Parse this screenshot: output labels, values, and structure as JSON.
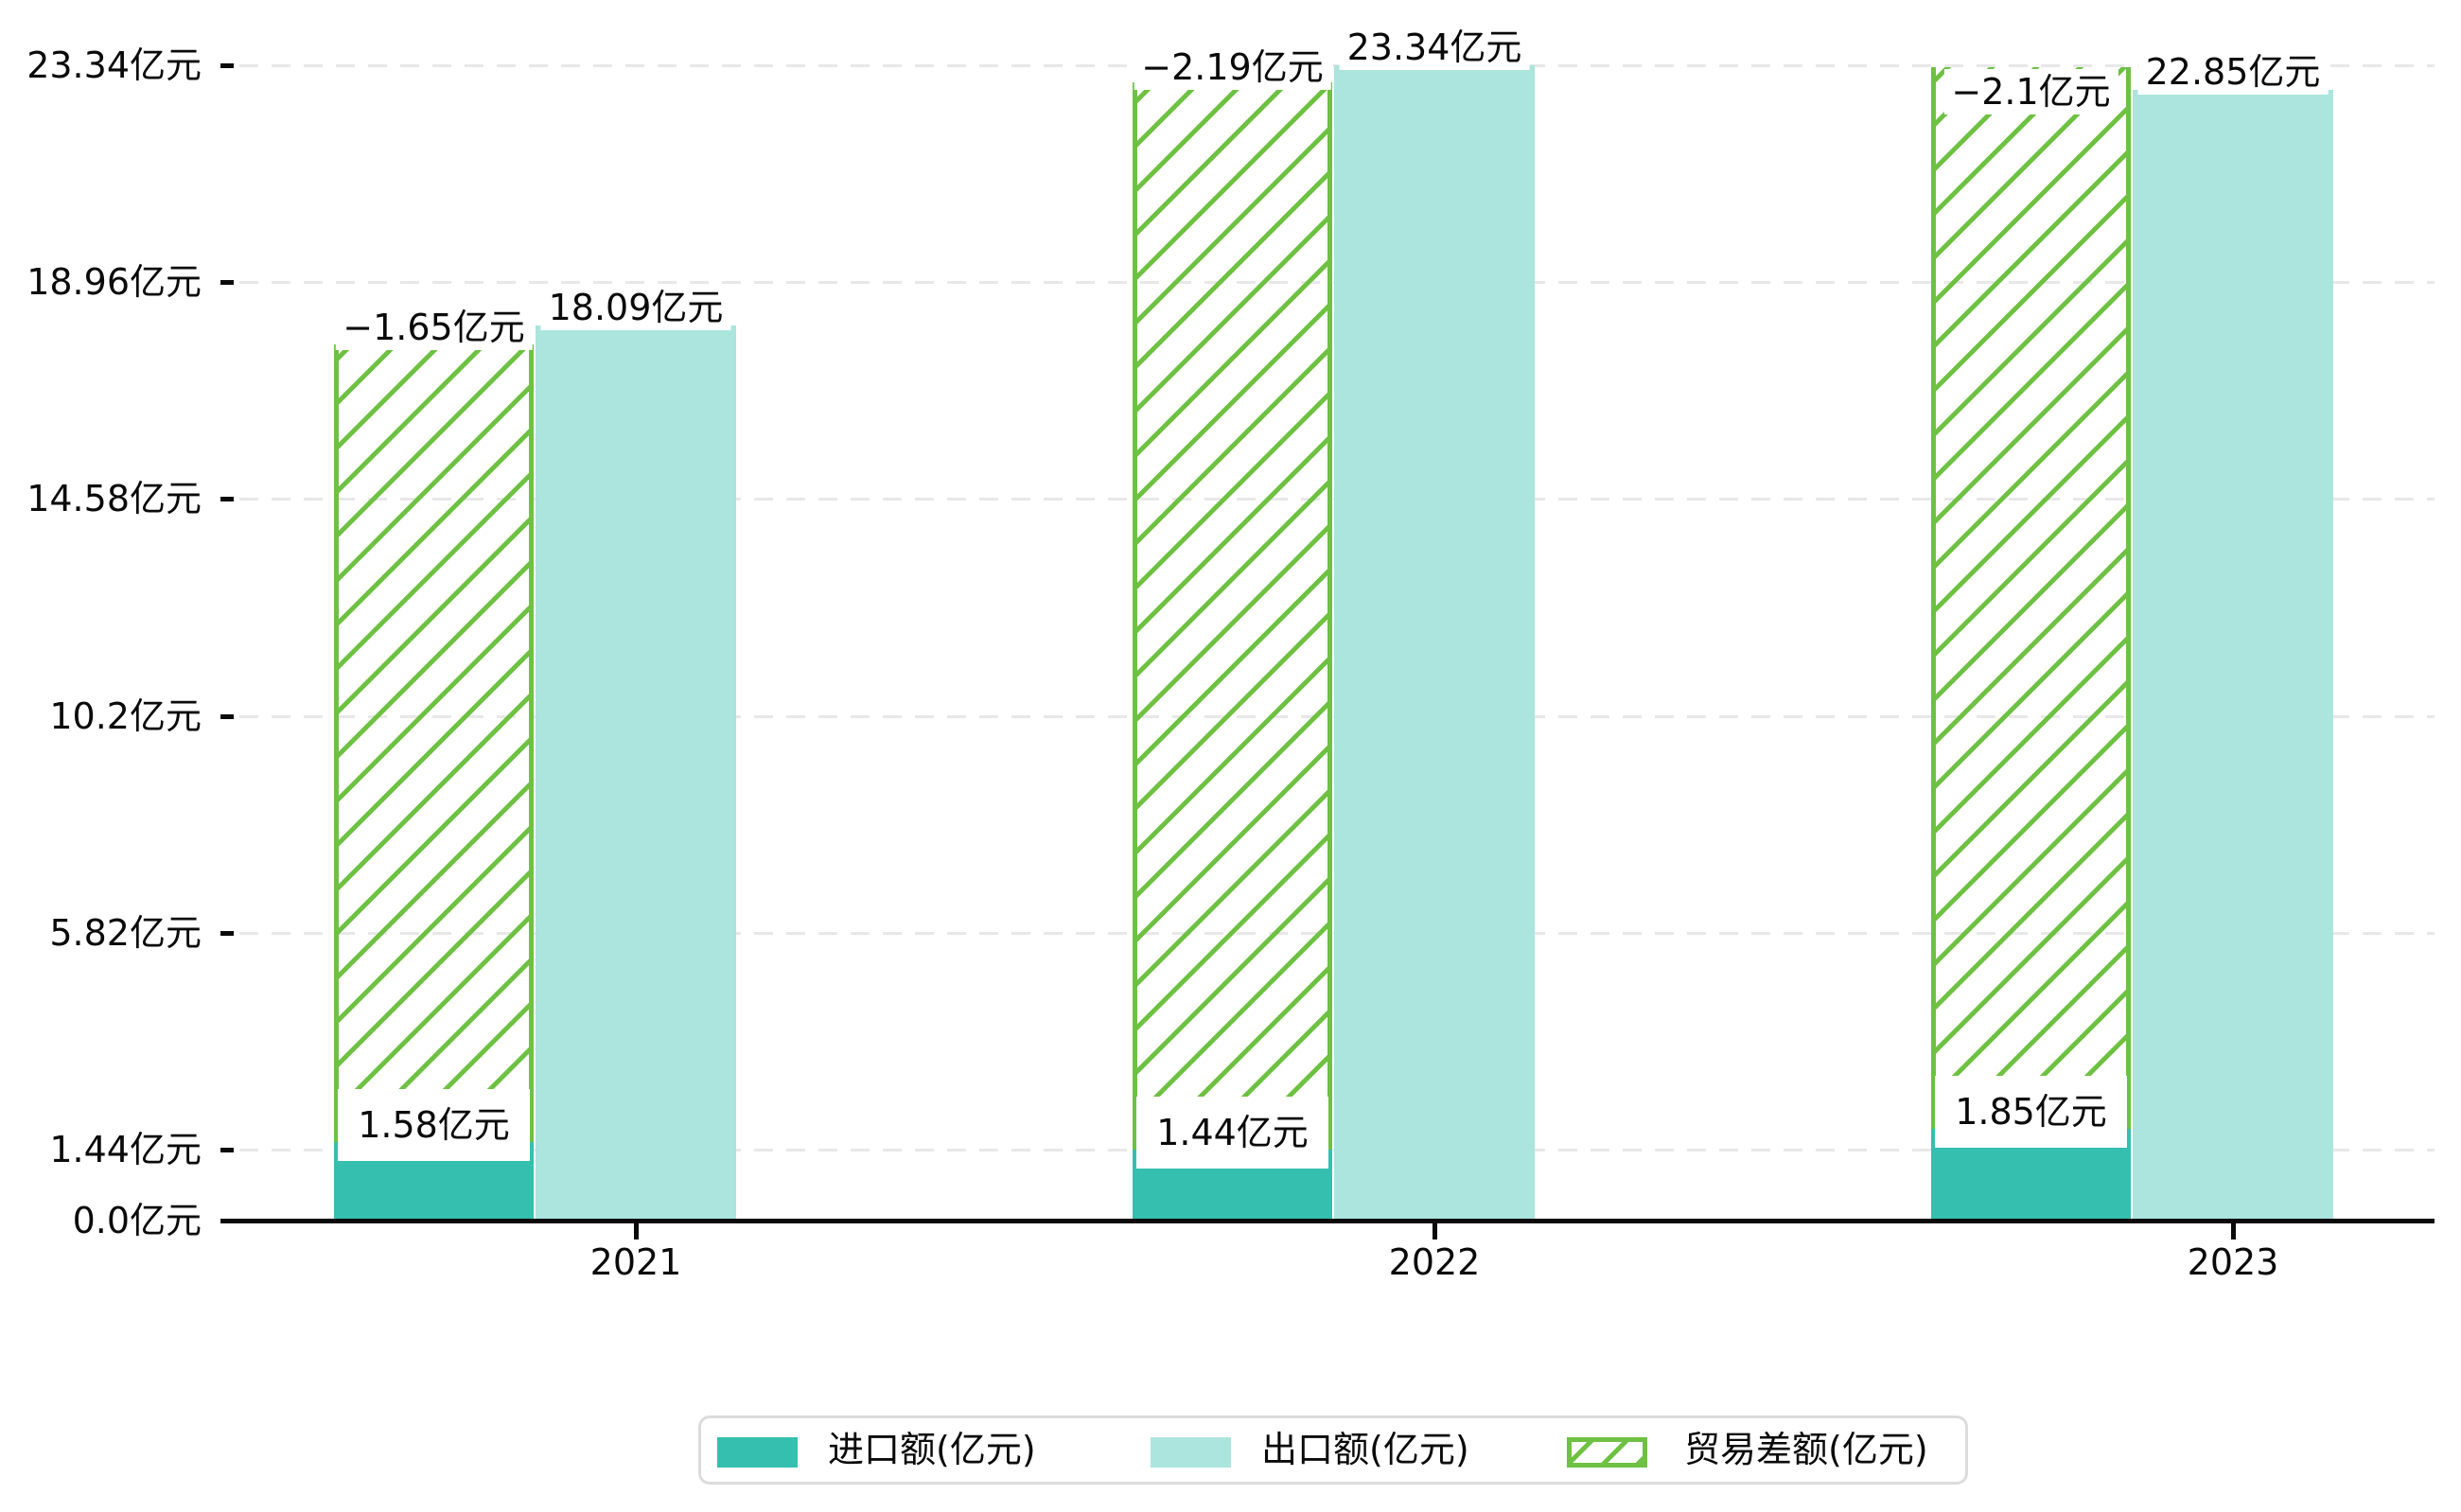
{
  "chart_data": {
    "type": "bar",
    "title": "",
    "unit": "亿元",
    "categories": [
      "2021",
      "2022",
      "2023"
    ],
    "series": [
      {
        "name": "进口额(亿元)",
        "type": "bar",
        "color": "#34bfaf",
        "values": [
          1.58,
          1.44,
          1.85
        ],
        "data_labels": [
          "1.58亿元",
          "1.44亿元",
          "1.85亿元"
        ]
      },
      {
        "name": "出口额(亿元)",
        "type": "bar",
        "color": "#abe5de",
        "values": [
          18.09,
          23.34,
          22.85
        ],
        "data_labels": [
          "18.09亿元",
          "23.34亿元",
          "22.85亿元"
        ]
      },
      {
        "name": "贸易差额(亿元)",
        "type": "bar",
        "style": "hatched",
        "color": "#6ec142",
        "values": [
          -1.65,
          -2.19,
          -2.1
        ],
        "data_labels": [
          "−1.65亿元",
          "−2.19亿元",
          "−2.1亿元"
        ],
        "drawn_spans": [
          {
            "from": 1.58,
            "to": 17.71
          },
          {
            "from": 1.44,
            "to": 23.0
          },
          {
            "from": 1.85,
            "to": 23.31
          }
        ]
      }
    ],
    "y_axis": {
      "ticks": [
        {
          "value": 23.34,
          "label": "23.34亿元"
        },
        {
          "value": 18.96,
          "label": "18.96亿元"
        },
        {
          "value": 14.58,
          "label": "14.58亿元"
        },
        {
          "value": 10.2,
          "label": "10.2亿元"
        },
        {
          "value": 5.82,
          "label": "5.82亿元"
        },
        {
          "value": 1.44,
          "label": "1.44亿元"
        },
        {
          "value": 0.0,
          "label": "0.0亿元"
        }
      ]
    },
    "ylim": [
      0,
      23.91
    ],
    "grid": true,
    "legend": {
      "position": "bottom",
      "items": [
        "进口额(亿元)",
        "出口额(亿元)",
        "贸易差额(亿元)"
      ]
    },
    "colors": {
      "import_bar": "#34bfaf",
      "export_bar": "#abe5de",
      "balance_hatch": "#6ec142",
      "gridline": "#e8e8e8",
      "axis": "#0a0a0a",
      "label_background": "#ffffff",
      "legend_border": "#dcdcdc",
      "text": "#0a0a0a"
    }
  }
}
